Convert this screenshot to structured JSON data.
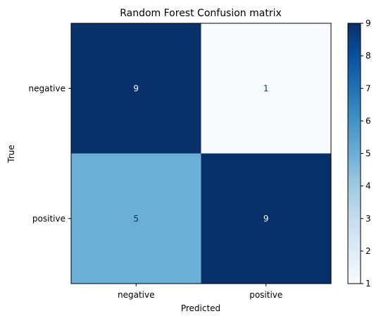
{
  "chart_data": {
    "type": "heatmap",
    "title": "Random Forest Confusion matrix",
    "xlabel": "Predicted",
    "ylabel": "True",
    "x_categories": [
      "negative",
      "positive"
    ],
    "y_categories": [
      "negative",
      "positive"
    ],
    "values": [
      [
        9,
        1
      ],
      [
        5,
        9
      ]
    ],
    "colormap": "Blues",
    "colorbar": {
      "range": [
        1,
        9
      ],
      "ticks": [
        "1",
        "2",
        "3",
        "4",
        "5",
        "6",
        "7",
        "8",
        "9"
      ]
    },
    "colors": {
      "cell_low": "#f7fbff",
      "cell_mid": "#6baed6",
      "cell_high": "#08306b",
      "text_on_dark": "#ffffff",
      "text_on_light": "#08306b"
    }
  }
}
